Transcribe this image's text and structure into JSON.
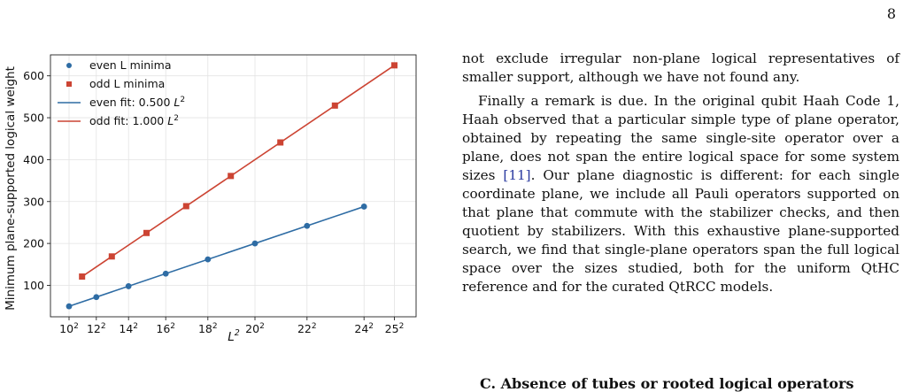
{
  "page": {
    "number": "8"
  },
  "chart_data": {
    "type": "line",
    "ylabel": "Minimum plane-supported logical weight",
    "xlabel_base": "L",
    "xlabel_exp": "2",
    "xlim": [
      70,
      660
    ],
    "ylim": [
      25,
      650
    ],
    "yticks": [
      100,
      200,
      300,
      400,
      500,
      600
    ],
    "xticks": [
      {
        "value": 100,
        "base": "10",
        "exp": "2"
      },
      {
        "value": 144,
        "base": "12",
        "exp": "2"
      },
      {
        "value": 196,
        "base": "14",
        "exp": "2"
      },
      {
        "value": 256,
        "base": "16",
        "exp": "2"
      },
      {
        "value": 324,
        "base": "18",
        "exp": "2"
      },
      {
        "value": 400,
        "base": "20",
        "exp": "2"
      },
      {
        "value": 484,
        "base": "22",
        "exp": "2"
      },
      {
        "value": 576,
        "base": "24",
        "exp": "2"
      },
      {
        "value": 625,
        "base": "25",
        "exp": "2"
      }
    ],
    "grid": true,
    "legend_position": "top-left",
    "series": [
      {
        "name": "even L minima",
        "kind": "scatter",
        "marker": "circle",
        "color": "#2e6ca4",
        "x": [
          100,
          144,
          196,
          256,
          324,
          400,
          484,
          576
        ],
        "y": [
          50,
          72,
          98,
          128,
          162,
          200,
          242,
          288
        ]
      },
      {
        "name": "odd L minima",
        "kind": "scatter",
        "marker": "square",
        "color": "#cc4433",
        "x": [
          121,
          169,
          225,
          289,
          361,
          441,
          529,
          625
        ],
        "y": [
          121,
          169,
          225,
          289,
          361,
          441,
          529,
          625
        ]
      },
      {
        "name": "even fit: 0.500 ",
        "name_var": "L",
        "name_exp": "2",
        "kind": "line",
        "color": "#2e6ca4",
        "x": [
          100,
          576
        ],
        "y": [
          50,
          288
        ]
      },
      {
        "name": "odd fit: 1.000 ",
        "name_var": "L",
        "name_exp": "2",
        "kind": "line",
        "color": "#cc4433",
        "x": [
          121,
          625
        ],
        "y": [
          121,
          625
        ]
      }
    ]
  },
  "text": {
    "p1": "not exclude irregular non-plane logical representatives of smaller support, although we have not found any.",
    "p2_before_cite": "Finally a remark is due. In the original qubit Haah Code 1, Haah observed that a particular simple type of plane operator, obtained by repeating the same single-site operator over a plane, does not span the entire logical space for some system sizes ",
    "p2_cite": "[11]",
    "p2_after_cite": ". Our plane diagnostic is different: for each single coordinate plane, we include all Pauli operators supported on that plane that commute with the stabilizer checks, and then quotient by stabilizers. With this exhaustive plane-supported search, we find that single-plane operators span the full logical space over the sizes studied, both for the uniform QtHC reference and for the curated QtRCC models.",
    "section_heading": "C.   Absence of tubes or rooted logical operators"
  }
}
